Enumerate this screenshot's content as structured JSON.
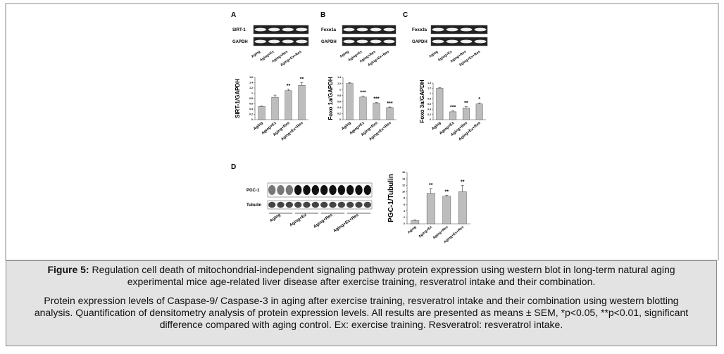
{
  "chart_data": [
    {
      "type": "bar",
      "ylabel": "SIRT-1/GAPDH",
      "categories": [
        "Aging",
        "Aging+Ex",
        "Aging+Res",
        "Aging+Ex+Res"
      ],
      "values": [
        0.5,
        0.85,
        1.1,
        1.3
      ],
      "errors": [
        0.02,
        0.08,
        0.05,
        0.1
      ],
      "annotations": [
        null,
        null,
        "**",
        "**"
      ],
      "ylim": [
        0,
        1.6
      ],
      "yticks": [
        0,
        0.2,
        0.4,
        0.6,
        0.8,
        1,
        1.2,
        1.4,
        1.6
      ],
      "color": "#bdbdbd"
    },
    {
      "type": "bar",
      "ylabel": "Foxo 1a/GAPDH",
      "categories": [
        "Aging",
        "Aging+Ex",
        "Aging+Res",
        "Aging+Ex+Res"
      ],
      "values": [
        1.2,
        0.75,
        0.55,
        0.4
      ],
      "errors": [
        0.03,
        0.03,
        0.02,
        0.02
      ],
      "annotations": [
        null,
        "***",
        "***",
        "***"
      ],
      "ylim": [
        0,
        1.4
      ],
      "yticks": [
        0,
        0.2,
        0.4,
        0.6,
        0.8,
        1,
        1.2,
        1.4
      ],
      "color": "#bdbdbd"
    },
    {
      "type": "bar",
      "ylabel": "Foxo 3a/GAPDH",
      "categories": [
        "Aging",
        "Aging+Ex",
        "Aging+Res",
        "Aging+Ex+Res"
      ],
      "values": [
        1.2,
        0.3,
        0.45,
        0.6
      ],
      "errors": [
        0.02,
        0.04,
        0.05,
        0.04
      ],
      "annotations": [
        null,
        "***",
        "**",
        "*"
      ],
      "ylim": [
        0,
        1.4
      ],
      "yticks": [
        0,
        0.2,
        0.4,
        0.6,
        0.8,
        1,
        1.2,
        1.4
      ],
      "color": "#bdbdbd"
    },
    {
      "type": "bar",
      "ylabel": "PGC-1/Tubulin",
      "categories": [
        "Aging",
        "Aging+Ex",
        "Aging+Res",
        "Aging+Ex+Res"
      ],
      "values": [
        1,
        9.5,
        8.6,
        10
      ],
      "errors": [
        0.2,
        1.5,
        0.3,
        2
      ],
      "annotations": [
        null,
        "**",
        "**",
        "**"
      ],
      "ylim": [
        0,
        16
      ],
      "yticks": [
        0,
        2,
        4,
        6,
        8,
        10,
        12,
        14,
        16
      ],
      "color": "#bdbdbd"
    }
  ],
  "blots": [
    {
      "panel": "A",
      "rows": [
        "SIRT-1",
        "GAPDH"
      ],
      "lanes": [
        "Aging",
        "Aging+Ex",
        "Aging+Res",
        "Aging+Ex+Res"
      ]
    },
    {
      "panel": "B",
      "rows": [
        "Foxo1a",
        "GAPDH"
      ],
      "lanes": [
        "Aging",
        "Aging+Ex",
        "Aging+Res",
        "Aging+Ex+Res"
      ]
    },
    {
      "panel": "C",
      "rows": [
        "Foxo3a",
        "GAPDH"
      ],
      "lanes": [
        "Aging",
        "Aging+Ex",
        "Aging+Res",
        "Aging+Ex+Res"
      ]
    },
    {
      "panel": "D",
      "rows": [
        "PGC-1",
        "Tubulin"
      ],
      "lanes": [
        "Aging",
        "Aging+Ex",
        "Aging+Res",
        "Aging+Ex+Res"
      ]
    }
  ],
  "caption": {
    "label": "Figure 5:",
    "title": "Regulation cell death of mitochondrial-independent signaling pathway protein expression using western blot in long-term natural aging experimental mice age-related liver disease after exercise training, resveratrol intake and their combination.",
    "body": "Protein expression levels of Caspase-9/ Caspase-3 in aging after exercise training, resveratrol intake and their combination using western blotting analysis. Quantification of densitometry analysis of protein expression levels. All results are presented as means ± SEM, *p<0.05, **p<0.01, significant difference compared with aging control. Ex: exercise training. Resveratrol: resveratrol intake."
  }
}
